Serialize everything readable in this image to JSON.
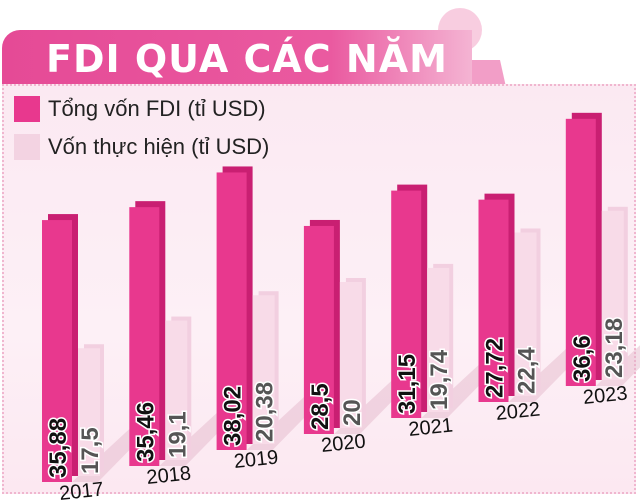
{
  "chart_data": {
    "type": "bar",
    "title": "FDI QUA CÁC NĂM",
    "categories": [
      "2017",
      "2018",
      "2019",
      "2020",
      "2021",
      "2022",
      "2023"
    ],
    "series": [
      {
        "name": "Tổng vốn FDI (tỉ USD)",
        "values": [
          35.88,
          35.46,
          38.02,
          28.5,
          31.15,
          27.72,
          36.6
        ],
        "labels": [
          "35,88",
          "35,46",
          "38,02",
          "28,5",
          "31,15",
          "27,72",
          "36,6"
        ],
        "color": "#e8388e"
      },
      {
        "name": "Vốn thực hiện (tỉ USD)",
        "values": [
          17.5,
          19.1,
          20.38,
          20,
          19.74,
          22.4,
          23.18
        ],
        "labels": [
          "17,5",
          "19,1",
          "20,38",
          "20",
          "19,74",
          "22,4",
          "23,18"
        ],
        "color": "#f8dbe8"
      }
    ],
    "legend": "top-left",
    "grid": false
  }
}
